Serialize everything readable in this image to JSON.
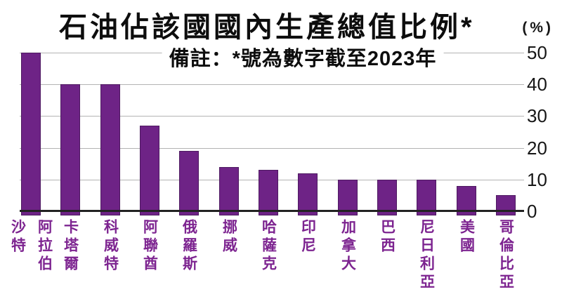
{
  "chart_data": {
    "type": "bar",
    "title": "石油佔該國國內生產總值比例*",
    "unit": "(%)",
    "note": "備註：*號為數字截至2023年",
    "categories": [
      "沙特阿拉伯",
      "卡塔爾",
      "科威特",
      "阿聯酋",
      "俄羅斯",
      "挪威",
      "哈薩克",
      "印尼",
      "加拿大",
      "巴西",
      "尼日利亞",
      "美國",
      "哥倫比亞"
    ],
    "label_columns": [
      [
        "沙特",
        "阿拉伯"
      ],
      [
        "卡塔爾"
      ],
      [
        "科威特"
      ],
      [
        "阿聯酋"
      ],
      [
        "俄羅斯"
      ],
      [
        "挪威"
      ],
      [
        "哈薩克"
      ],
      [
        "印尼"
      ],
      [
        "加拿大"
      ],
      [
        "巴西"
      ],
      [
        "尼日利亞"
      ],
      [
        "美國"
      ],
      [
        "哥倫比亞"
      ]
    ],
    "values": [
      50,
      40,
      40,
      27,
      19,
      14,
      13,
      12,
      10,
      10,
      10,
      8,
      5
    ],
    "ylim": [
      0,
      50
    ],
    "yticks": [
      0,
      10,
      20,
      30,
      40,
      50
    ],
    "grid": "horizontal",
    "legend": "none",
    "colors": {
      "bar_fill": "#6e2386",
      "bar_border": "#4e1a61",
      "category_label": "#7d2490",
      "axis_text": "#161616",
      "gridline": "#b3b3b3",
      "baseline": "#222222"
    }
  }
}
